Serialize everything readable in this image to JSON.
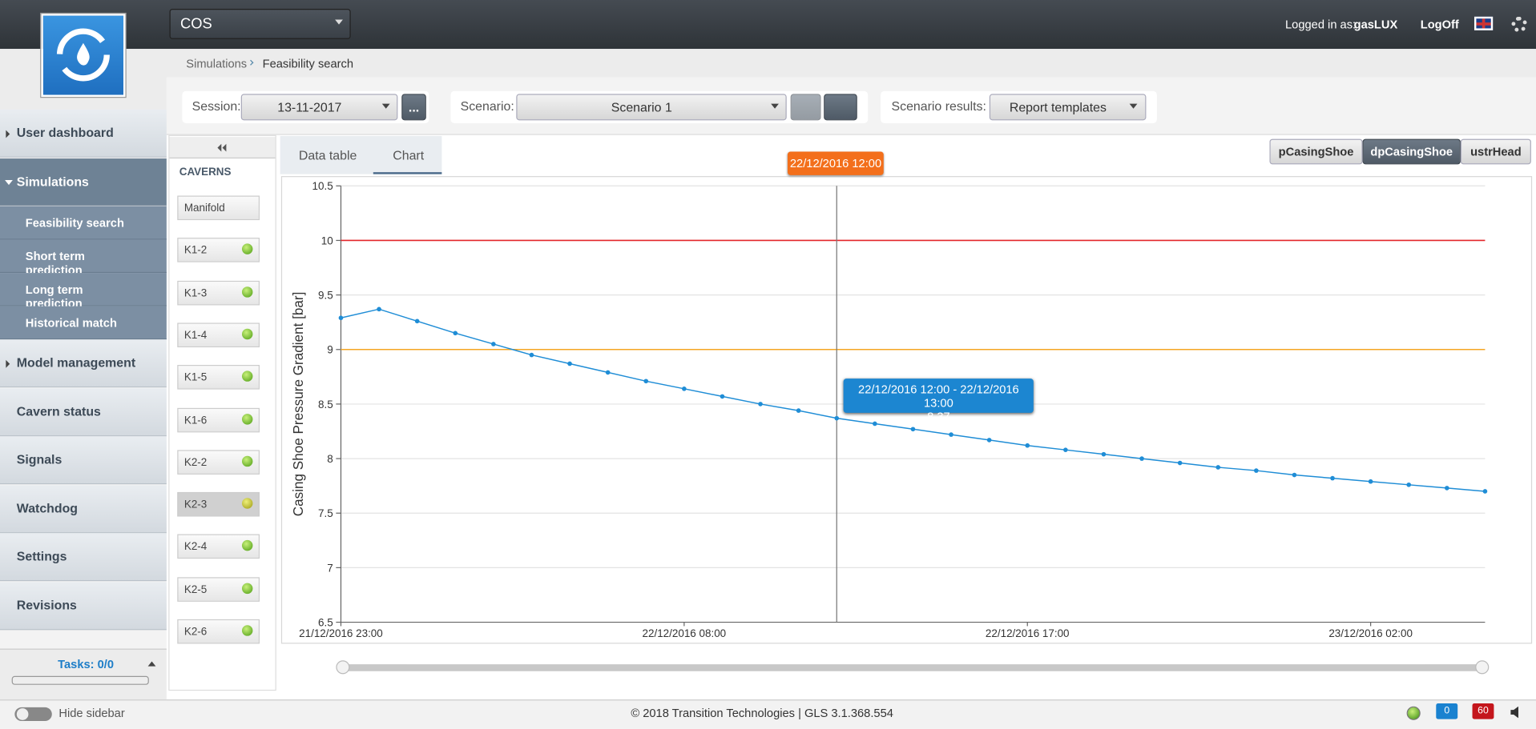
{
  "header": {
    "app": "COS",
    "logged_in_label": "Logged in as:",
    "user": "gasLUX",
    "logoff": "LogOff"
  },
  "breadcrumbs": [
    "Simulations",
    "Feasibility search"
  ],
  "toolbar": {
    "session_label": "Session:",
    "session": "13-11-2017",
    "more": "...",
    "scenario_label": "Scenario:",
    "scenario": "Scenario 1",
    "results_label": "Scenario results:",
    "results": "Report templates"
  },
  "sidebar": {
    "menu": [
      {
        "label": "User dashboard"
      },
      {
        "label": "Simulations",
        "children": [
          "Feasibility search",
          "Short term prediction",
          "Long term prediction",
          "Historical match"
        ]
      },
      {
        "label": "Model management"
      },
      {
        "label": "Cavern status"
      },
      {
        "label": "Signals"
      },
      {
        "label": "Watchdog"
      },
      {
        "label": "Settings"
      },
      {
        "label": "Revisions"
      }
    ],
    "tasks": "Tasks: 0/0"
  },
  "caverns": {
    "title": "CAVERNS",
    "items": [
      {
        "label": "Manifold"
      },
      {
        "label": "K1-2",
        "status": "ok"
      },
      {
        "label": "K1-3",
        "status": "ok"
      },
      {
        "label": "K1-4",
        "status": "ok"
      },
      {
        "label": "K1-5",
        "status": "ok"
      },
      {
        "label": "K1-6",
        "status": "ok"
      },
      {
        "label": "K2-2",
        "status": "ok"
      },
      {
        "label": "K2-3",
        "status": "warning"
      },
      {
        "label": "K2-4",
        "status": "ok"
      },
      {
        "label": "K2-5",
        "status": "ok"
      },
      {
        "label": "K2-6",
        "status": "ok"
      }
    ],
    "selected": 7
  },
  "tabs": [
    "Data table",
    "Chart"
  ],
  "active_tab": 1,
  "signals": [
    "pCasingShoe",
    "dpCasingShoe",
    "ustrHead"
  ],
  "active_signal": 1,
  "chart_data": {
    "type": "line",
    "y_label": "Casing Shoe Pressure Gradient [bar]",
    "x": [
      "21/12/2016 23:00",
      "22/12/2016 00:00",
      "22/12/2016 01:00",
      "22/12/2016 02:00",
      "22/12/2016 03:00",
      "22/12/2016 04:00",
      "22/12/2016 05:00",
      "22/12/2016 06:00",
      "22/12/2016 07:00",
      "22/12/2016 08:00",
      "22/12/2016 09:00",
      "22/12/2016 10:00",
      "22/12/2016 11:00",
      "22/12/2016 12:00",
      "22/12/2016 13:00",
      "22/12/2016 14:00",
      "22/12/2016 15:00",
      "22/12/2016 16:00",
      "22/12/2016 17:00",
      "22/12/2016 18:00",
      "22/12/2016 19:00",
      "22/12/2016 20:00",
      "22/12/2016 21:00",
      "22/12/2016 22:00",
      "22/12/2016 23:00",
      "23/12/2016 00:00",
      "23/12/2016 01:00",
      "23/12/2016 02:00",
      "23/12/2016 03:00",
      "23/12/2016 04:00",
      "23/12/2016 05:00"
    ],
    "series": [
      {
        "name": "dpCasingShoe",
        "color": "#1f8dd6",
        "values": [
          9.29,
          9.37,
          9.26,
          9.15,
          9.05,
          8.95,
          8.87,
          8.79,
          8.71,
          8.64,
          8.57,
          8.5,
          8.44,
          8.37,
          8.32,
          8.27,
          8.22,
          8.17,
          8.12,
          8.08,
          8.04,
          8.0,
          7.96,
          7.92,
          7.89,
          7.85,
          7.82,
          7.79,
          7.76,
          7.73,
          7.7
        ]
      }
    ],
    "xlim": [
      "21/12/2016 23:00",
      "23/12/2016 05:00"
    ],
    "xticks": [
      "21/12/2016 23:00",
      "22/12/2016 08:00",
      "22/12/2016 17:00",
      "23/12/2016 02:00"
    ],
    "ylim": [
      6.5,
      10.5
    ],
    "yticks": [
      6.5,
      7,
      7.5,
      8,
      8.5,
      9,
      9.5,
      10,
      10.5
    ],
    "grid": true,
    "thresholds": [
      {
        "value": 10,
        "color": "#e3262a"
      },
      {
        "value": 9,
        "color": "#f5a623"
      }
    ],
    "crosshair": "22/12/2016 12:00",
    "tooltip": {
      "range": "22/12/2016 12:00 - 22/12/2016 13:00",
      "index": 13
    }
  },
  "footer": {
    "hide_sidebar": "Hide sidebar",
    "copyright": "© 2018 Transition Technologies | GLS 3.1.368.554",
    "messages": 0,
    "alerts": 60
  }
}
